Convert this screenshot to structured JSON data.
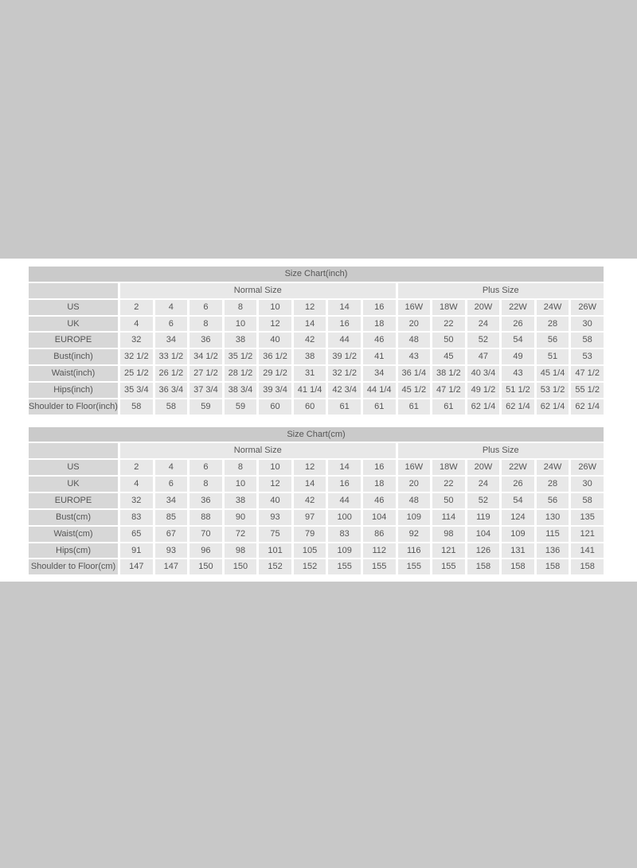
{
  "page": {
    "background_color": "#c8c8c8",
    "panel_background_color": "#ffffff"
  },
  "colors": {
    "title_bar": "#cacaca",
    "label_cell": "#d7d7d7",
    "data_cell": "#e8e8e8",
    "cell_gap": "#ffffff",
    "text": "#555555"
  },
  "chart_data": [
    {
      "type": "table",
      "title": "Size Chart(inch)",
      "group_headers": [
        {
          "label": "Normal Size",
          "span": 8
        },
        {
          "label": "Plus Size",
          "span": 6
        }
      ],
      "rows": [
        {
          "label": "US",
          "values": [
            "2",
            "4",
            "6",
            "8",
            "10",
            "12",
            "14",
            "16",
            "16W",
            "18W",
            "20W",
            "22W",
            "24W",
            "26W"
          ]
        },
        {
          "label": "UK",
          "values": [
            "4",
            "6",
            "8",
            "10",
            "12",
            "14",
            "16",
            "18",
            "20",
            "22",
            "24",
            "26",
            "28",
            "30"
          ]
        },
        {
          "label": "EUROPE",
          "values": [
            "32",
            "34",
            "36",
            "38",
            "40",
            "42",
            "44",
            "46",
            "48",
            "50",
            "52",
            "54",
            "56",
            "58"
          ]
        },
        {
          "label": "Bust(inch)",
          "values": [
            "32 1/2",
            "33 1/2",
            "34 1/2",
            "35 1/2",
            "36 1/2",
            "38",
            "39 1/2",
            "41",
            "43",
            "45",
            "47",
            "49",
            "51",
            "53"
          ]
        },
        {
          "label": "Waist(inch)",
          "values": [
            "25 1/2",
            "26 1/2",
            "27 1/2",
            "28 1/2",
            "29 1/2",
            "31",
            "32 1/2",
            "34",
            "36 1/4",
            "38 1/2",
            "40 3/4",
            "43",
            "45 1/4",
            "47 1/2"
          ]
        },
        {
          "label": "Hips(inch)",
          "values": [
            "35 3/4",
            "36 3/4",
            "37 3/4",
            "38 3/4",
            "39 3/4",
            "41 1/4",
            "42 3/4",
            "44 1/4",
            "45 1/2",
            "47 1/2",
            "49 1/2",
            "51 1/2",
            "53 1/2",
            "55 1/2"
          ]
        },
        {
          "label": "Shoulder to Floor(inch)",
          "values": [
            "58",
            "58",
            "59",
            "59",
            "60",
            "60",
            "61",
            "61",
            "61",
            "61",
            "62 1/4",
            "62 1/4",
            "62 1/4",
            "62 1/4"
          ]
        }
      ]
    },
    {
      "type": "table",
      "title": "Size Chart(cm)",
      "group_headers": [
        {
          "label": "Normal Size",
          "span": 8
        },
        {
          "label": "Plus Size",
          "span": 6
        }
      ],
      "rows": [
        {
          "label": "US",
          "values": [
            "2",
            "4",
            "6",
            "8",
            "10",
            "12",
            "14",
            "16",
            "16W",
            "18W",
            "20W",
            "22W",
            "24W",
            "26W"
          ]
        },
        {
          "label": "UK",
          "values": [
            "4",
            "6",
            "8",
            "10",
            "12",
            "14",
            "16",
            "18",
            "20",
            "22",
            "24",
            "26",
            "28",
            "30"
          ]
        },
        {
          "label": "EUROPE",
          "values": [
            "32",
            "34",
            "36",
            "38",
            "40",
            "42",
            "44",
            "46",
            "48",
            "50",
            "52",
            "54",
            "56",
            "58"
          ]
        },
        {
          "label": "Bust(cm)",
          "values": [
            "83",
            "85",
            "88",
            "90",
            "93",
            "97",
            "100",
            "104",
            "109",
            "114",
            "119",
            "124",
            "130",
            "135"
          ]
        },
        {
          "label": "Waist(cm)",
          "values": [
            "65",
            "67",
            "70",
            "72",
            "75",
            "79",
            "83",
            "86",
            "92",
            "98",
            "104",
            "109",
            "115",
            "121"
          ]
        },
        {
          "label": "Hips(cm)",
          "values": [
            "91",
            "93",
            "96",
            "98",
            "101",
            "105",
            "109",
            "112",
            "116",
            "121",
            "126",
            "131",
            "136",
            "141"
          ]
        },
        {
          "label": "Shoulder to Floor(cm)",
          "values": [
            "147",
            "147",
            "150",
            "150",
            "152",
            "152",
            "155",
            "155",
            "155",
            "155",
            "158",
            "158",
            "158",
            "158"
          ]
        }
      ]
    }
  ]
}
